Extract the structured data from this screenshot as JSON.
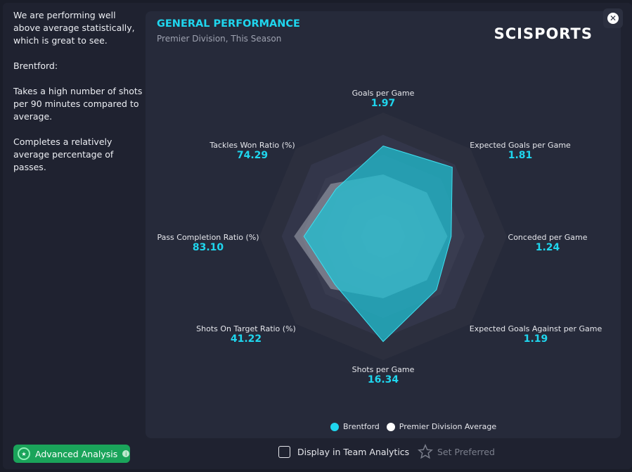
{
  "sidebar": {
    "paragraphs": [
      "We are performing well above average statistically, which is great to see.",
      "Brentford:",
      "Takes a high number of shots per 90 minutes compared to average.",
      "Completes a relatively average percentage of passes."
    ]
  },
  "header": {
    "title": "GENERAL PERFORMANCE",
    "subtitle": "Premier Division, This Season",
    "logo": "SCISPORTS"
  },
  "chart_data": {
    "type": "radar",
    "axes": [
      "Goals per Game",
      "Expected Goals per Game",
      "Conceded per Game",
      "Expected Goals Against per Game",
      "Shots per Game",
      "Shots On Target Ratio (%)",
      "Pass Completion Ratio (%)",
      "Tackles Won Ratio (%)"
    ],
    "values": [
      "1.97",
      "1.81",
      "1.24",
      "1.19",
      "16.34",
      "41.22",
      "83.10",
      "74.29"
    ],
    "series": [
      {
        "name": "Brentford",
        "color": "#1fd6ee",
        "relative": [
          0.73,
          0.79,
          0.55,
          0.61,
          0.85,
          0.55,
          0.64,
          0.54
        ]
      },
      {
        "name": "Premier Division Average",
        "color": "#ffffff",
        "relative": [
          0.5,
          0.5,
          0.52,
          0.5,
          0.5,
          0.6,
          0.72,
          0.6
        ]
      }
    ],
    "legend": "bottom"
  },
  "footer": {
    "advanced": "Advanced Analysis",
    "display": "Display in Team Analytics",
    "preferred": "Set Preferred"
  }
}
